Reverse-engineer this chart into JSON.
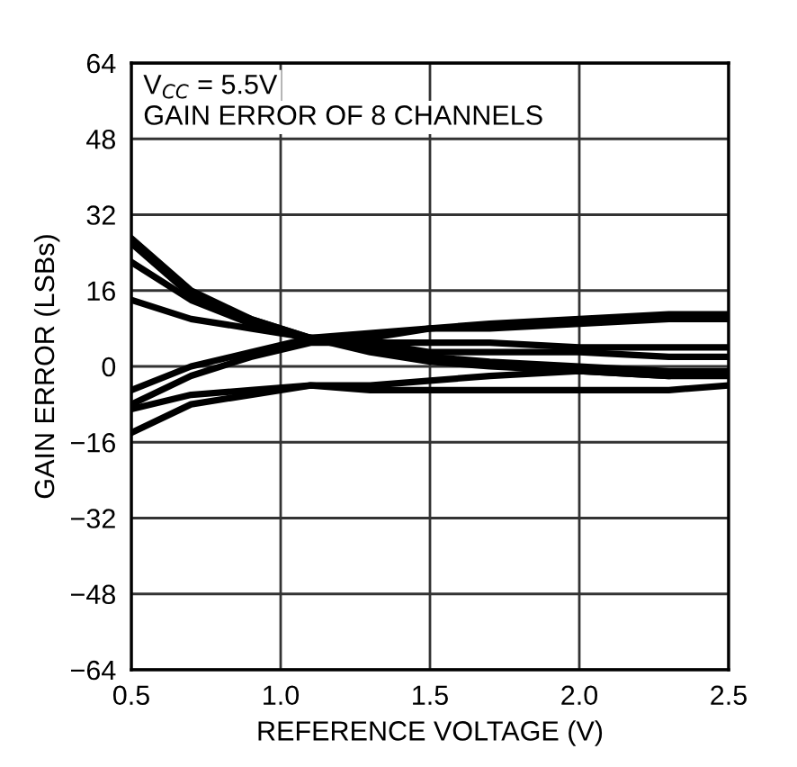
{
  "chart_data": {
    "type": "line",
    "xlabel": "REFERENCE VOLTAGE (V)",
    "ylabel": "GAIN ERROR (LSBs)",
    "annotations": [
      "V$_{CC}$ = 5.5V",
      "GAIN ERROR OF 8 CHANNELS"
    ],
    "x": [
      0.5,
      0.7,
      0.9,
      1.1,
      1.3,
      1.5,
      1.7,
      2.0,
      2.3,
      2.5
    ],
    "series": [
      {
        "color": "#000000",
        "values": [
          27,
          16,
          10,
          6,
          4,
          2,
          1,
          0,
          -1,
          -1
        ]
      },
      {
        "color": "#000000",
        "values": [
          26,
          15,
          10,
          6,
          3,
          1,
          0,
          -1,
          -2,
          -2
        ]
      },
      {
        "color": "#000000",
        "values": [
          22,
          14,
          9,
          6,
          5,
          3,
          3,
          3,
          2,
          2
        ]
      },
      {
        "color": "#000000",
        "values": [
          14,
          10,
          8,
          6,
          6,
          8,
          9,
          10,
          11,
          11
        ]
      },
      {
        "color": "#000000",
        "values": [
          -5,
          0,
          3,
          6,
          7,
          8,
          8,
          9,
          10,
          10
        ]
      },
      {
        "color": "#000000",
        "values": [
          -8,
          -2,
          2,
          5,
          5,
          5,
          5,
          4,
          4,
          4
        ]
      },
      {
        "color": "#000000",
        "values": [
          -9,
          -6,
          -5,
          -4,
          -4,
          -3,
          -2,
          -1,
          -2,
          -1
        ]
      },
      {
        "color": "#000000",
        "values": [
          -14,
          -8,
          -6,
          -4,
          -5,
          -5,
          -5,
          -5,
          -5,
          -4
        ]
      }
    ],
    "xlim": [
      0.5,
      2.5
    ],
    "xticks": [
      {
        "value": 0.5,
        "label": "0.5"
      },
      {
        "value": 1.0,
        "label": "1.0"
      },
      {
        "value": 1.5,
        "label": "1.5"
      },
      {
        "value": 2.0,
        "label": "2.0"
      },
      {
        "value": 2.5,
        "label": "2.5"
      }
    ],
    "ylim": [
      -64,
      64
    ],
    "yticks": [
      {
        "value": -64,
        "label": "−64"
      },
      {
        "value": -48,
        "label": "−48"
      },
      {
        "value": -32,
        "label": "−32"
      },
      {
        "value": -16,
        "label": "−16"
      },
      0,
      16,
      32,
      48,
      64
    ],
    "grid": true,
    "legend": false,
    "marker": "none",
    "line_style": "solid"
  }
}
